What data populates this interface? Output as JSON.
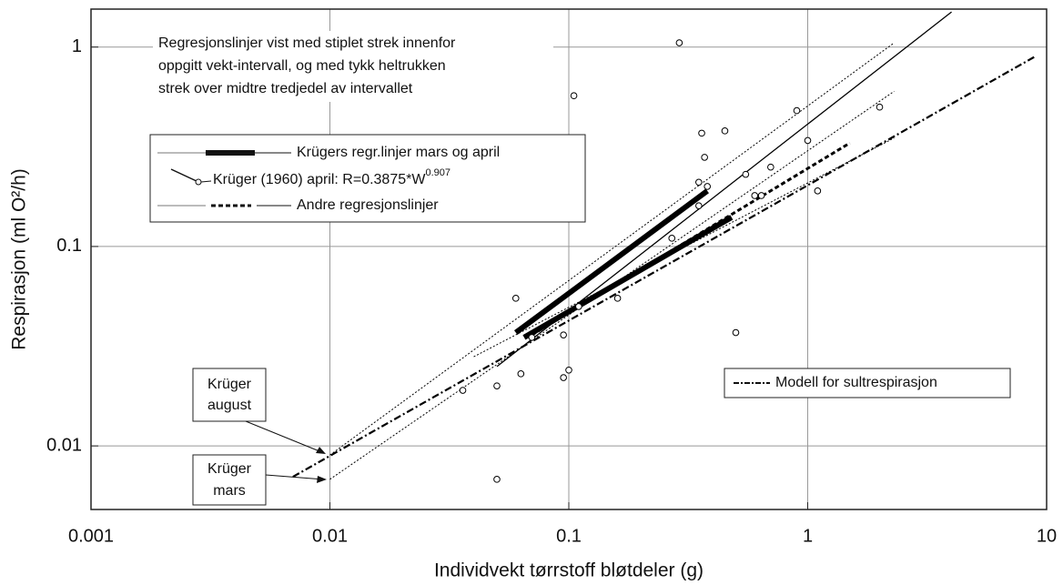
{
  "chart_data": {
    "type": "scatter",
    "xlabel": "Individvekt tørrstoff bløtdeler (g)",
    "ylabel": "Respirasjon (ml O²/h)",
    "log_x": true,
    "log_y": true,
    "grid": true,
    "xlim": [
      0.001,
      10
    ],
    "ylim": [
      0.0048,
      1.55
    ],
    "xticks": [
      0.001,
      0.01,
      0.1,
      1,
      10
    ],
    "yticks": [
      0.01,
      0.1,
      1
    ],
    "color": "#000000",
    "x": [
      0.29,
      0.105,
      0.9,
      2.0,
      0.45,
      0.36,
      0.37,
      0.55,
      1.0,
      0.7,
      1.1,
      0.6,
      0.35,
      0.38,
      0.06,
      0.16,
      0.27,
      0.5,
      0.063,
      0.05,
      0.036,
      0.095,
      0.095,
      0.1,
      0.05,
      0.07,
      0.11,
      0.35,
      0.64
    ],
    "values": [
      1.05,
      0.57,
      0.48,
      0.5,
      0.38,
      0.37,
      0.28,
      0.23,
      0.34,
      0.25,
      0.19,
      0.18,
      0.21,
      0.2,
      0.055,
      0.055,
      0.11,
      0.037,
      0.023,
      0.02,
      0.019,
      0.036,
      0.022,
      0.024,
      0.0068,
      0.035,
      0.05,
      0.16,
      0.18
    ],
    "lines": [
      {
        "style": "thick",
        "x": [
          0.06,
          0.38
        ],
        "values": [
          0.037,
          0.19
        ]
      },
      {
        "style": "thick",
        "x": [
          0.065,
          0.48
        ],
        "values": [
          0.035,
          0.14
        ]
      },
      {
        "style": "solid",
        "x": [
          0.05,
          4
        ],
        "values": [
          0.025,
          1.5
        ]
      },
      {
        "style": "dashdot",
        "x": [
          0.007,
          9
        ],
        "values": [
          0.007,
          0.9
        ]
      },
      {
        "style": "dotted",
        "x": [
          0.01,
          2.3
        ],
        "values": [
          0.009,
          1.05
        ]
      },
      {
        "style": "dotted",
        "x": [
          0.01,
          2.3
        ],
        "values": [
          0.0068,
          0.6
        ]
      },
      {
        "style": "dotted",
        "x": [
          0.04,
          2.3
        ],
        "values": [
          0.028,
          0.35
        ]
      },
      {
        "style": "dashed",
        "x": [
          0.07,
          1.5
        ],
        "values": [
          0.036,
          0.33
        ]
      }
    ],
    "annotation": [
      "Regresjonslinjer vist med stiplet strek innenfor",
      "oppgitt vekt-intervall, og med tykk heltrukken",
      "strek over midtre tredjedel av intervallet"
    ],
    "legend": [
      {
        "label": "Krügers regr.linjer mars og april"
      },
      {
        "label": "Krüger (1960) april:  R=0.3875*W",
        "sup": "0.907"
      },
      {
        "label": "Andre regresjonslinjer"
      }
    ],
    "legend2": "Modell for sultrespirasjon",
    "callouts": [
      [
        "Krüger",
        "august"
      ],
      [
        "Krüger",
        "mars"
      ]
    ]
  }
}
